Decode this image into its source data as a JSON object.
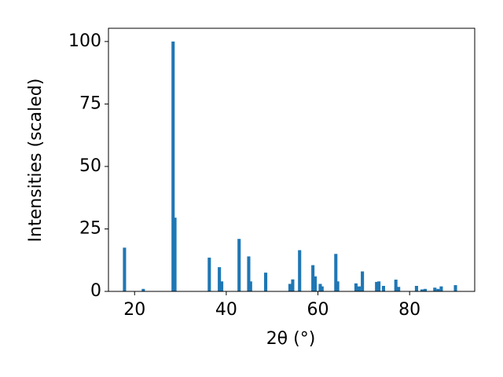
{
  "chart_data": {
    "type": "bar",
    "xlabel": "2θ (°)",
    "ylabel": "Intensities (scaled)",
    "color": "#1f77b4",
    "bar_width": 0.7,
    "x": [
      17.8,
      21.9,
      28.4,
      28.8,
      36.3,
      38.5,
      39.0,
      42.8,
      44.9,
      45.3,
      48.6,
      53.9,
      54.5,
      56.0,
      58.9,
      59.4,
      60.5,
      60.9,
      63.9,
      64.3,
      68.3,
      69.0,
      69.7,
      72.8,
      73.3,
      74.3,
      77.0,
      77.6,
      81.5,
      82.7,
      83.4,
      85.5,
      86.2,
      86.9,
      90.0
    ],
    "values": [
      17.5,
      1,
      100,
      29.5,
      13.5,
      9.7,
      4,
      21,
      14,
      4,
      7.5,
      3,
      4.8,
      16.5,
      10.5,
      6,
      3,
      2,
      15,
      4,
      3.2,
      2,
      8,
      3.8,
      4,
      2.2,
      4.7,
      1.8,
      2.2,
      0.8,
      1,
      1.5,
      1,
      2,
      2.5
    ],
    "xlim": [
      14.3,
      94.2
    ],
    "ylim": [
      0,
      105.3
    ],
    "xticks": [
      20,
      40,
      60,
      80
    ],
    "yticks": [
      0,
      25,
      50,
      75,
      100
    ]
  }
}
